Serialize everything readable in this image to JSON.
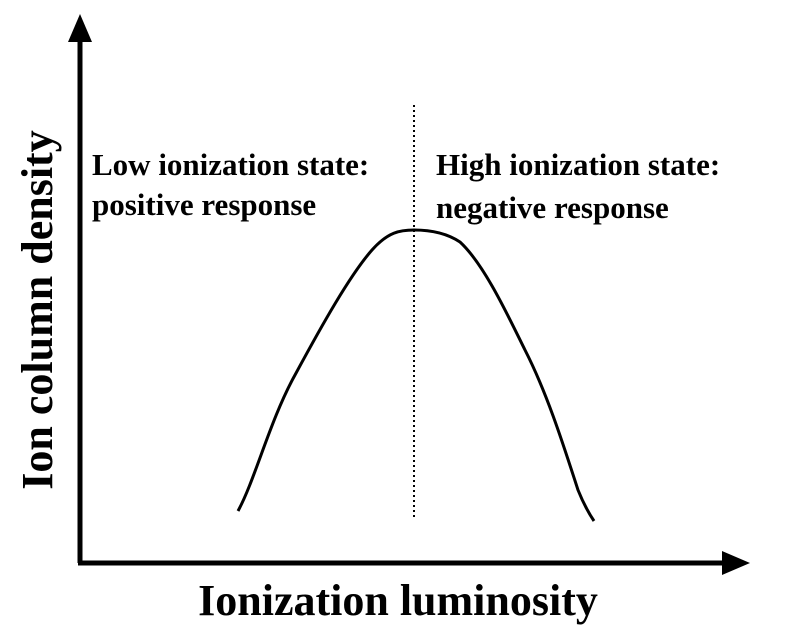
{
  "diagram": {
    "x_axis_label": "Ionization luminosity",
    "y_axis_label": "Ion column density",
    "left_region": {
      "line1": "Low ionization state:",
      "line2": "positive response"
    },
    "right_region": {
      "line1": "High ionization state:",
      "line2": "negative response"
    },
    "colors": {
      "ink": "#000000",
      "background": "#ffffff"
    }
  }
}
